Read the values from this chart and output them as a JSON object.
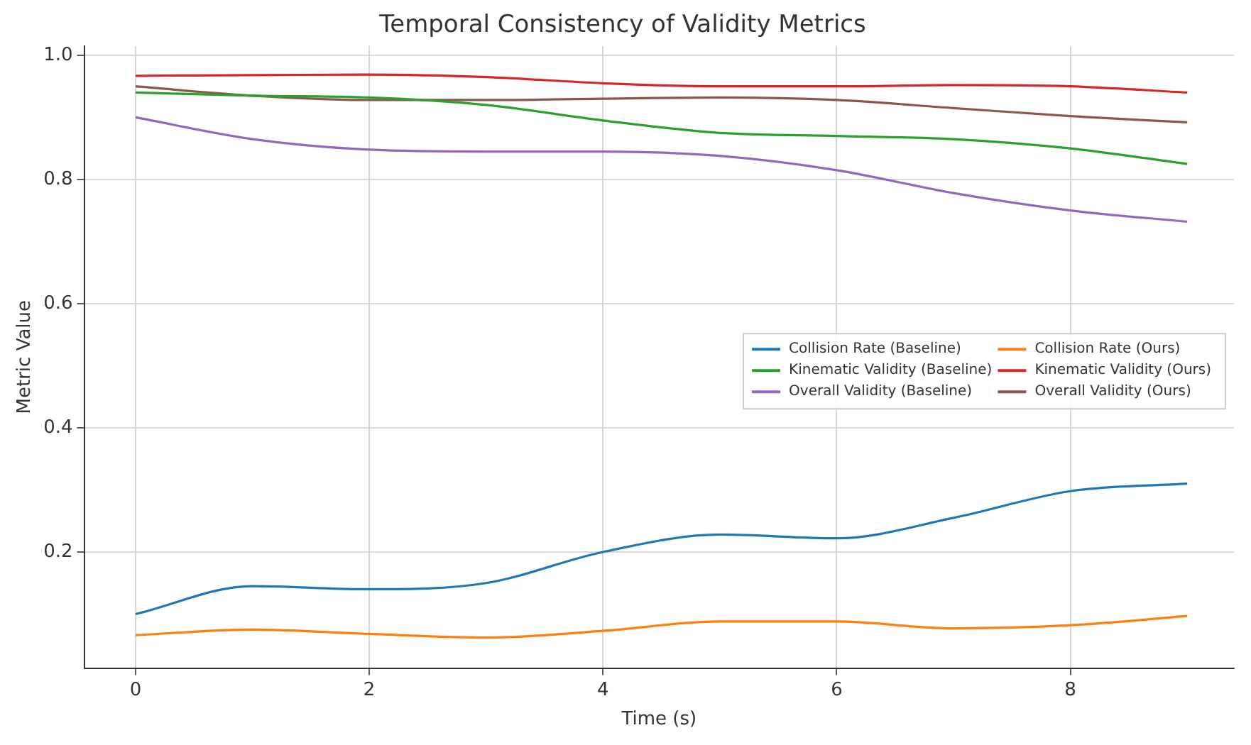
{
  "chart_data": {
    "type": "line",
    "title": "Temporal Consistency of Validity Metrics",
    "xlabel": "Time (s)",
    "ylabel": "Metric Value",
    "x": [
      0,
      1,
      2,
      3,
      4,
      5,
      6,
      7,
      8,
      9
    ],
    "series": [
      {
        "name": "Collision Rate (Baseline)",
        "color": "#1f77b4",
        "values": [
          0.1,
          0.145,
          0.14,
          0.15,
          0.2,
          0.228,
          0.222,
          0.255,
          0.298,
          0.31
        ]
      },
      {
        "name": "Collision Rate (Ours)",
        "color": "#ff7f0e",
        "values": [
          0.066,
          0.075,
          0.068,
          0.062,
          0.073,
          0.088,
          0.088,
          0.077,
          0.082,
          0.097
        ]
      },
      {
        "name": "Kinematic Validity (Baseline)",
        "color": "#2ca02c",
        "values": [
          0.94,
          0.935,
          0.932,
          0.92,
          0.895,
          0.875,
          0.87,
          0.865,
          0.85,
          0.825
        ]
      },
      {
        "name": "Kinematic Validity (Ours)",
        "color": "#d62728",
        "values": [
          0.967,
          0.968,
          0.969,
          0.965,
          0.955,
          0.95,
          0.95,
          0.952,
          0.95,
          0.94
        ]
      },
      {
        "name": "Overall Validity (Baseline)",
        "color": "#9467bd",
        "values": [
          0.9,
          0.865,
          0.848,
          0.845,
          0.845,
          0.838,
          0.815,
          0.778,
          0.75,
          0.732
        ]
      },
      {
        "name": "Overall Validity (Ours)",
        "color": "#8c564b",
        "values": [
          0.95,
          0.935,
          0.928,
          0.928,
          0.93,
          0.932,
          0.928,
          0.915,
          0.902,
          0.892
        ]
      }
    ],
    "xlim": [
      -0.44,
      9.4
    ],
    "xticks": [
      0,
      2,
      4,
      6,
      8
    ],
    "ylim": [
      0.013,
      1.015
    ],
    "yticks": [
      0.2,
      0.4,
      0.6,
      0.8,
      {
        "value": 1,
        "label": "1.0"
      }
    ],
    "grid": true,
    "legend": "center right",
    "marker": "none",
    "line_style": "solid"
  }
}
